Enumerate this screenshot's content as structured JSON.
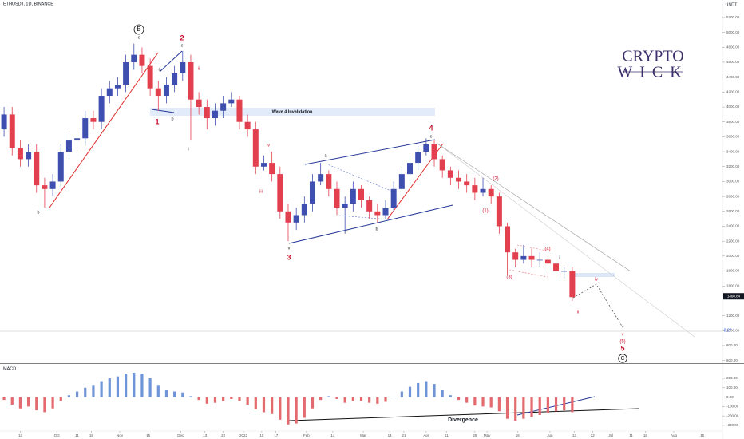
{
  "chart_data": [
    {
      "type": "candlestick",
      "title": "ETHUSDT, 1D, BINANCE",
      "y_unit": "USDT",
      "up_color": "#3f4fb0",
      "down_color": "#e3404f",
      "x": [
        2,
        6,
        10,
        14,
        18,
        22,
        26,
        30,
        34,
        38,
        42,
        46,
        50,
        54,
        58,
        62,
        66,
        70,
        74,
        78,
        82,
        86,
        90,
        94,
        98,
        102,
        106,
        110,
        114,
        118,
        122,
        126,
        130,
        134,
        138,
        142,
        146,
        150,
        154,
        158,
        162,
        166,
        170,
        174,
        178,
        182,
        186,
        190,
        194,
        198,
        202,
        206,
        210,
        214,
        218,
        222,
        226,
        230,
        234,
        238,
        242,
        246,
        250,
        254,
        258,
        262,
        266,
        270,
        274,
        278,
        282
      ],
      "ohlc": [
        [
          3700,
          4000,
          3600,
          3900
        ],
        [
          3900,
          4000,
          3350,
          3450
        ],
        [
          3450,
          3550,
          3200,
          3300
        ],
        [
          3300,
          3500,
          3200,
          3400
        ],
        [
          3400,
          3500,
          2850,
          2950
        ],
        [
          2950,
          3050,
          2650,
          2900
        ],
        [
          2900,
          3100,
          2800,
          3000
        ],
        [
          3000,
          3500,
          2900,
          3400
        ],
        [
          3400,
          3650,
          3300,
          3550
        ],
        [
          3550,
          3680,
          3450,
          3580
        ],
        [
          3580,
          3950,
          3480,
          3850
        ],
        [
          3850,
          3950,
          3700,
          3800
        ],
        [
          3800,
          4250,
          3700,
          4150
        ],
        [
          4150,
          4350,
          4050,
          4250
        ],
        [
          4250,
          4400,
          4150,
          4300
        ],
        [
          4300,
          4700,
          4200,
          4600
        ],
        [
          4600,
          4850,
          4500,
          4700
        ],
        [
          4700,
          4800,
          4450,
          4550
        ],
        [
          4550,
          4650,
          4150,
          4250
        ],
        [
          4250,
          4350,
          3950,
          4150
        ],
        [
          4150,
          4400,
          4050,
          4300
        ],
        [
          4300,
          4550,
          4200,
          4450
        ],
        [
          4450,
          4750,
          4350,
          4600
        ],
        [
          4600,
          4700,
          3550,
          4100
        ],
        [
          4100,
          4200,
          3900,
          4000
        ],
        [
          4000,
          4100,
          3700,
          3850
        ],
        [
          3850,
          4050,
          3750,
          3950
        ],
        [
          3950,
          4150,
          3850,
          4050
        ],
        [
          4050,
          4200,
          4000,
          4100
        ],
        [
          4100,
          4150,
          3700,
          3800
        ],
        [
          3800,
          3900,
          3600,
          3700
        ],
        [
          3700,
          3800,
          3100,
          3200
        ],
        [
          3200,
          3350,
          3150,
          3250
        ],
        [
          3250,
          3400,
          3000,
          3100
        ],
        [
          3100,
          3200,
          2500,
          2600
        ],
        [
          2600,
          2700,
          2200,
          2450
        ],
        [
          2450,
          2650,
          2350,
          2550
        ],
        [
          2550,
          2800,
          2450,
          2700
        ],
        [
          2700,
          3100,
          2600,
          3000
        ],
        [
          3000,
          3250,
          2950,
          3100
        ],
        [
          3100,
          3150,
          2800,
          2900
        ],
        [
          2900,
          3000,
          2550,
          2650
        ],
        [
          2650,
          2800,
          2300,
          2700
        ],
        [
          2700,
          3000,
          2600,
          2900
        ],
        [
          2900,
          2950,
          2650,
          2750
        ],
        [
          2750,
          2800,
          2500,
          2600
        ],
        [
          2600,
          2700,
          2450,
          2550
        ],
        [
          2550,
          2750,
          2500,
          2650
        ],
        [
          2650,
          3000,
          2600,
          2900
        ],
        [
          2900,
          3200,
          2850,
          3100
        ],
        [
          3100,
          3350,
          3000,
          3250
        ],
        [
          3250,
          3480,
          3150,
          3400
        ],
        [
          3400,
          3580,
          3350,
          3500
        ],
        [
          3500,
          3550,
          3200,
          3300
        ],
        [
          3300,
          3350,
          3050,
          3150
        ],
        [
          3150,
          3200,
          2950,
          3050
        ],
        [
          3050,
          3150,
          2900,
          3000
        ],
        [
          3000,
          3100,
          2850,
          2950
        ],
        [
          2950,
          3050,
          2750,
          2850
        ],
        [
          2850,
          3050,
          2800,
          2900
        ],
        [
          2900,
          2950,
          2700,
          2800
        ],
        [
          2800,
          2850,
          2300,
          2400
        ],
        [
          2400,
          2450,
          1750,
          2050
        ],
        [
          2050,
          2100,
          1850,
          1950
        ],
        [
          1950,
          2150,
          1900,
          2000
        ],
        [
          2000,
          2100,
          1850,
          1950
        ],
        [
          1950,
          2050,
          1850,
          1950
        ],
        [
          1950,
          2000,
          1800,
          1900
        ],
        [
          1900,
          1950,
          1700,
          1800
        ],
        [
          1800,
          1850,
          1700,
          1800
        ],
        [
          1800,
          1850,
          1400,
          1450
        ]
      ],
      "xlim": [
        0,
        356
      ],
      "ylim": [
        564,
        5435
      ],
      "yticks": [
        {
          "value": 5200,
          "label": "5200.00"
        },
        {
          "value": 5000,
          "label": "5000.00"
        },
        {
          "value": 4800,
          "label": "4800.00"
        },
        {
          "value": 4600,
          "label": "4600.00"
        },
        {
          "value": 4400,
          "label": "4400.00"
        },
        {
          "value": 4200,
          "label": "4200.00"
        },
        {
          "value": 4000,
          "label": "4000.00"
        },
        {
          "value": 3800,
          "label": "3800.00"
        },
        {
          "value": 3600,
          "label": "3600.00"
        },
        {
          "value": 3400,
          "label": "3400.00"
        },
        {
          "value": 3200,
          "label": "3200.00"
        },
        {
          "value": 3000,
          "label": "3000.00"
        },
        {
          "value": 2800,
          "label": "2800.00"
        },
        {
          "value": 2600,
          "label": "2600.00"
        },
        {
          "value": 2400,
          "label": "2400.00"
        },
        {
          "value": 2200,
          "label": "2200.00"
        },
        {
          "value": 2000,
          "label": "2000.00"
        },
        {
          "value": 1800,
          "label": "1800.00"
        },
        {
          "value": 1600,
          "label": "1600.00"
        },
        {
          "value": 1200,
          "label": "1200.00"
        },
        {
          "value": 1000,
          "label": "1000.00"
        },
        {
          "value": 800,
          "label": "800.00"
        },
        {
          "value": 600,
          "label": "600.00"
        }
      ],
      "last_price": 1460.84,
      "level": -0.27,
      "band_label": "Wave 4 Invalidation",
      "annotations": [
        "B",
        "c",
        "2",
        "c",
        "a",
        "1",
        "b",
        "ii",
        "i",
        "b",
        "iii",
        "iv",
        "v",
        "3",
        "a",
        "b",
        "4",
        "c",
        "(2)",
        "(1)",
        "(3)",
        "(4)",
        "i",
        "ii",
        "iv",
        "v",
        "(5)",
        "5",
        "C"
      ],
      "watermark": [
        "CRYPTO",
        "WICK"
      ]
    },
    {
      "type": "bar",
      "name": "MACD",
      "pos_color": "#6f95d8",
      "neg_color": "#e36b70",
      "x": [
        2,
        6,
        10,
        14,
        18,
        22,
        26,
        30,
        34,
        38,
        42,
        46,
        50,
        54,
        58,
        62,
        66,
        70,
        74,
        78,
        82,
        86,
        90,
        94,
        98,
        102,
        106,
        110,
        114,
        118,
        122,
        126,
        130,
        134,
        138,
        142,
        146,
        150,
        154,
        158,
        162,
        166,
        170,
        174,
        178,
        182,
        186,
        190,
        194,
        198,
        202,
        206,
        210,
        214,
        218,
        222,
        226,
        230,
        234,
        238,
        242,
        246,
        250,
        254,
        258,
        262,
        266,
        270,
        274,
        278,
        282
      ],
      "values": [
        -30,
        -80,
        -120,
        -100,
        -140,
        -160,
        -120,
        -40,
        20,
        60,
        100,
        130,
        170,
        200,
        220,
        250,
        260,
        250,
        200,
        130,
        80,
        60,
        50,
        10,
        -30,
        -70,
        -60,
        -40,
        -20,
        -40,
        -80,
        -130,
        -160,
        -180,
        -240,
        -290,
        -280,
        -220,
        -120,
        -30,
        10,
        -20,
        -60,
        -40,
        -40,
        -60,
        -70,
        -50,
        0,
        60,
        110,
        150,
        170,
        140,
        80,
        20,
        -30,
        -60,
        -90,
        -100,
        -110,
        -150,
        -230,
        -250,
        -230,
        -210,
        -190,
        -170,
        -150,
        -140,
        -160
      ],
      "xlim": [
        0,
        356
      ],
      "ylim": [
        -360,
        353
      ],
      "yticks": [
        {
          "value": 200,
          "label": "200.00"
        },
        {
          "value": 100,
          "label": "100.00"
        },
        {
          "value": 0,
          "label": "0.00"
        },
        {
          "value": -100,
          "label": "-100.00"
        },
        {
          "value": -200,
          "label": "-200.00"
        },
        {
          "value": -300,
          "label": "-300.00"
        }
      ],
      "xticks": [
        {
          "value": 10,
          "label": "13"
        },
        {
          "value": 28,
          "label": "Oct"
        },
        {
          "value": 38,
          "label": "11"
        },
        {
          "value": 45,
          "label": "18"
        },
        {
          "value": 59,
          "label": "Nov"
        },
        {
          "value": 73,
          "label": "15"
        },
        {
          "value": 89,
          "label": "Dec"
        },
        {
          "value": 101,
          "label": "13"
        },
        {
          "value": 110,
          "label": "22"
        },
        {
          "value": 120,
          "label": "2022"
        },
        {
          "value": 129,
          "label": "10"
        },
        {
          "value": 136,
          "label": "17"
        },
        {
          "value": 151,
          "label": "Feb"
        },
        {
          "value": 164,
          "label": "14"
        },
        {
          "value": 179,
          "label": "Mar"
        },
        {
          "value": 192,
          "label": "14"
        },
        {
          "value": 199,
          "label": "21"
        },
        {
          "value": 210,
          "label": "Apr"
        },
        {
          "value": 220,
          "label": "11"
        },
        {
          "value": 234,
          "label": "25"
        },
        {
          "value": 240,
          "label": "May"
        },
        {
          "value": 255,
          "label": "16"
        },
        {
          "value": 271,
          "label": "Jun"
        },
        {
          "value": 283,
          "label": "13"
        },
        {
          "value": 292,
          "label": "22"
        },
        {
          "value": 301,
          "label": "Jul"
        },
        {
          "value": 311,
          "label": "11"
        },
        {
          "value": 318,
          "label": "18"
        },
        {
          "value": 332,
          "label": "Aug"
        },
        {
          "value": 346,
          "label": "15"
        }
      ],
      "annotation": "Divergence"
    }
  ]
}
